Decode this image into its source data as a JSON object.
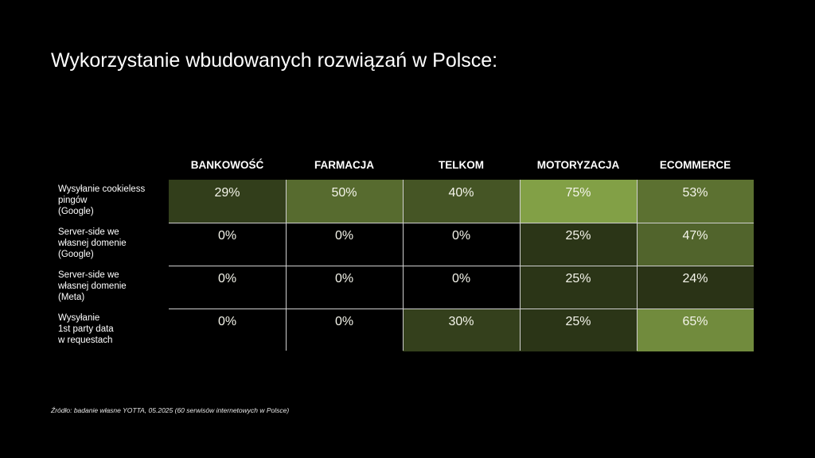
{
  "title": "Wykorzystanie wbudowanych rozwiązań w Polsce:",
  "source": "Źródło: badanie własne YOTTA, 05.2025 (60 serwisów internetowych w Polsce)",
  "colors": {
    "scale_low": "#000000",
    "scale_high": "#82a046",
    "grid": "#cfcfcf"
  },
  "chart_data": {
    "type": "heatmap",
    "title": "Wykorzystanie wbudowanych rozwiązań w Polsce:",
    "columns": [
      "BANKOWOŚĆ",
      "FARMACJA",
      "TELKOM",
      "MOTORYZACJA",
      "ECOMMERCE"
    ],
    "rows": [
      {
        "label": "Wysyłanie cookieless\npingów\n(Google)",
        "values": [
          29,
          50,
          40,
          75,
          53
        ],
        "display": [
          "29%",
          "50%",
          "40%",
          "75%",
          "53%"
        ]
      },
      {
        "label": "Server-side we\nwłasnej domenie\n(Google)",
        "values": [
          0,
          0,
          0,
          25,
          47
        ],
        "display": [
          "0%",
          "0%",
          "0%",
          "25%",
          "47%"
        ]
      },
      {
        "label": "Server-side we\nwłasnej domenie\n(Meta)",
        "values": [
          0,
          0,
          0,
          25,
          24
        ],
        "display": [
          "0%",
          "0%",
          "0%",
          "25%",
          "24%"
        ]
      },
      {
        "label": "Wysyłanie\n1st party data\nw requestach",
        "values": [
          0,
          0,
          30,
          25,
          65
        ],
        "display": [
          "0%",
          "0%",
          "30%",
          "25%",
          "65%"
        ]
      }
    ],
    "unit": "%",
    "value_range": [
      0,
      75
    ]
  }
}
